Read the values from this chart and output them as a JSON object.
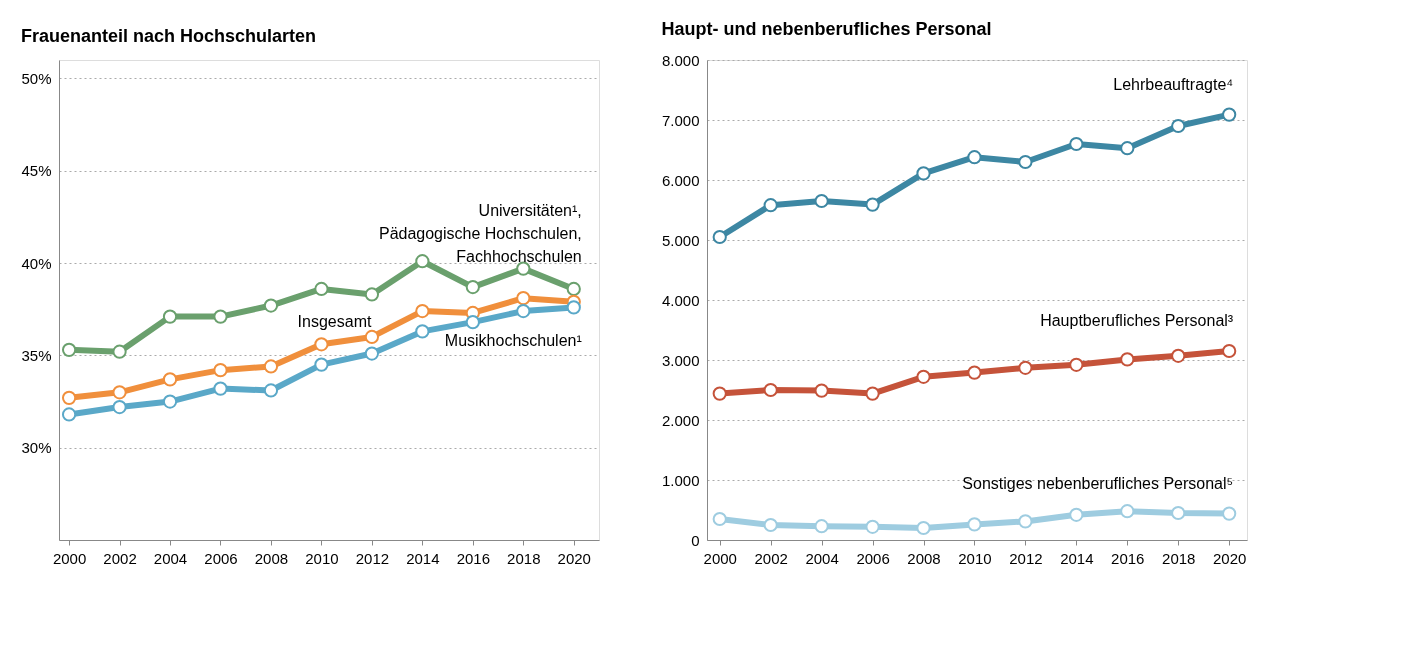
{
  "chart_data": [
    {
      "type": "line",
      "title": "Frauenanteil nach Hochschularten",
      "x": [
        2000,
        2002,
        2004,
        2006,
        2008,
        2010,
        2012,
        2014,
        2016,
        2018,
        2020
      ],
      "xlim": [
        1999.6,
        2021
      ],
      "xticks": [
        2000,
        2002,
        2004,
        2006,
        2008,
        2010,
        2012,
        2014,
        2016,
        2018,
        2020
      ],
      "ylim": [
        25,
        51
      ],
      "yticks": [
        {
          "value": 30,
          "label": "30%"
        },
        {
          "value": 35,
          "label": "35%"
        },
        {
          "value": 40,
          "label": "40%"
        },
        {
          "value": 45,
          "label": "45%"
        },
        {
          "value": 50,
          "label": "50%"
        }
      ],
      "grid": "y",
      "legend": false,
      "marker": "circle",
      "line_style": "solid",
      "series": [
        {
          "name": "Universitäten¹,\nPädagogische Hochschulen,\nFachhochschulen",
          "color": "#6aa06d",
          "values": [
            35.3,
            35.2,
            37.1,
            37.1,
            37.7,
            38.6,
            38.3,
            40.1,
            38.7,
            39.7,
            38.6
          ]
        },
        {
          "name": "Insgesamt",
          "color": "#f08f3c",
          "values": [
            32.7,
            33.0,
            33.7,
            34.2,
            34.4,
            35.6,
            36.0,
            37.4,
            37.3,
            38.1,
            37.9
          ]
        },
        {
          "name": "Musikhochschulen¹",
          "color": "#5aa8c8",
          "values": [
            31.8,
            32.2,
            32.5,
            33.2,
            33.1,
            34.5,
            35.1,
            36.3,
            36.8,
            37.4,
            37.6
          ]
        }
      ]
    },
    {
      "type": "line",
      "title": "Haupt- und nebenberufliches Personal",
      "x": [
        2000,
        2002,
        2004,
        2006,
        2008,
        2010,
        2012,
        2014,
        2016,
        2018,
        2020
      ],
      "xlim": [
        1999.5,
        2020.7
      ],
      "xticks": [
        2000,
        2002,
        2004,
        2006,
        2008,
        2010,
        2012,
        2014,
        2016,
        2018,
        2020
      ],
      "ylim": [
        0,
        8000
      ],
      "yticks": [
        0,
        {
          "value": 1000,
          "label": "1.000"
        },
        {
          "value": 2000,
          "label": "2.000"
        },
        {
          "value": 3000,
          "label": "3.000"
        },
        {
          "value": 4000,
          "label": "4.000"
        },
        {
          "value": 5000,
          "label": "5.000"
        },
        {
          "value": 6000,
          "label": "6.000"
        },
        {
          "value": 7000,
          "label": "7.000"
        },
        {
          "value": 8000,
          "label": "8.000"
        }
      ],
      "grid": "y",
      "legend": false,
      "marker": "circle",
      "line_style": "solid",
      "series": [
        {
          "name": "Lehrbeauftragte⁴",
          "color": "#3d87a3",
          "values": [
            5050,
            5580,
            5650,
            5590,
            6110,
            6380,
            6300,
            6600,
            6530,
            6900,
            7090
          ]
        },
        {
          "name": "Hauptberufliches Personal³",
          "color": "#c5533a",
          "values": [
            2440,
            2500,
            2490,
            2440,
            2720,
            2790,
            2870,
            2920,
            3010,
            3070,
            3150
          ]
        },
        {
          "name": "Sonstiges nebenberufliches Personal⁵",
          "color": "#9ecce0",
          "values": [
            350,
            250,
            230,
            220,
            200,
            260,
            310,
            420,
            480,
            450,
            440
          ]
        }
      ]
    }
  ]
}
